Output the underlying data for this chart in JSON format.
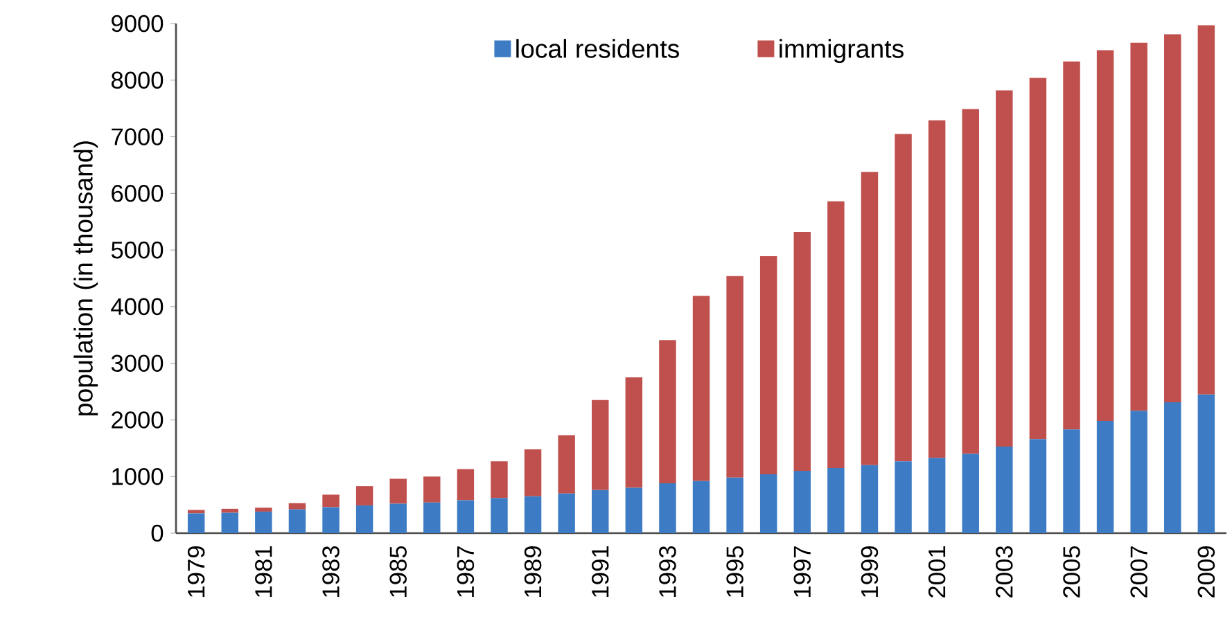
{
  "chart_data": {
    "type": "bar",
    "stacked": true,
    "ylabel": "population (in thousand)",
    "categories": [
      "1979",
      null,
      "1981",
      null,
      "1983",
      null,
      "1985",
      null,
      "1987",
      null,
      "1989",
      null,
      "1991",
      null,
      "1993",
      null,
      "1995",
      null,
      "1997",
      null,
      "1999",
      null,
      "2001",
      null,
      "2003",
      null,
      "2005",
      null,
      "2007",
      null,
      "2009"
    ],
    "series": [
      {
        "name": "local residents",
        "color": "#3d7cc4",
        "values": [
          350,
          360,
          380,
          420,
          460,
          490,
          520,
          540,
          580,
          620,
          650,
          700,
          760,
          800,
          880,
          920,
          980,
          1040,
          1100,
          1150,
          1200,
          1270,
          1330,
          1400,
          1530,
          1660,
          1830,
          1980,
          2160,
          2310,
          2450
        ]
      },
      {
        "name": "immigrants",
        "color": "#c0504d",
        "values": [
          60,
          70,
          70,
          110,
          220,
          340,
          440,
          460,
          550,
          650,
          830,
          1030,
          1590,
          1950,
          2530,
          3270,
          3560,
          3850,
          4220,
          4710,
          5180,
          5780,
          5960,
          6090,
          6290,
          6380,
          6500,
          6550,
          6500,
          6500,
          6520
        ]
      }
    ],
    "ylim": [
      0,
      9000
    ],
    "yticks": [
      0,
      1000,
      2000,
      3000,
      4000,
      5000,
      6000,
      7000,
      8000,
      9000
    ],
    "legend": "top",
    "grid": false
  }
}
